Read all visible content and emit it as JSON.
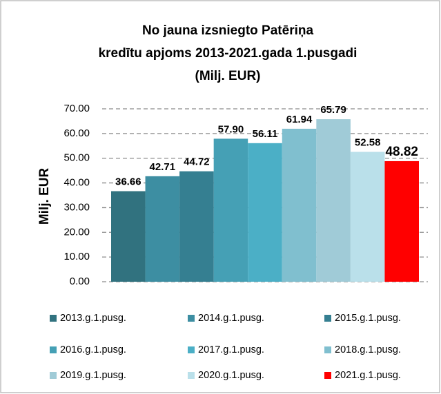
{
  "chart_data": {
    "type": "bar",
    "title": [
      "No jauna izsniegto Patēriņa",
      "kredītu apjoms 2013-2021.gada 1.pusgadi",
      "(Milj. EUR)"
    ],
    "ylabel": "Milj. EUR",
    "ylim": [
      0,
      70
    ],
    "yticks": [
      {
        "value": 0,
        "label": "0.00"
      },
      {
        "value": 10,
        "label": "10.00"
      },
      {
        "value": 20,
        "label": "20.00"
      },
      {
        "value": 30,
        "label": "30.00"
      },
      {
        "value": 40,
        "label": "40.00"
      },
      {
        "value": 50,
        "label": "50.00"
      },
      {
        "value": 60,
        "label": "60.00"
      },
      {
        "value": 70,
        "label": "70.00"
      }
    ],
    "grid": true,
    "series": [
      {
        "name": "2013.g.1.pusg.",
        "color": "#31727f",
        "values": [
          36.66
        ],
        "value_labels": [
          "36.66"
        ]
      },
      {
        "name": "2014.g.1.pusg.",
        "color": "#3d8ea2",
        "values": [
          42.71
        ],
        "value_labels": [
          "42.71"
        ]
      },
      {
        "name": "2015.g.1.pusg.",
        "color": "#357f91",
        "values": [
          44.72
        ],
        "value_labels": [
          "44.72"
        ]
      },
      {
        "name": "2016.g.1.pusg.",
        "color": "#45a0b5",
        "values": [
          57.9
        ],
        "value_labels": [
          "57.90"
        ]
      },
      {
        "name": "2017.g.1.pusg.",
        "color": "#4bafc6",
        "values": [
          56.11
        ],
        "value_labels": [
          "56.11"
        ]
      },
      {
        "name": "2018.g.1.pusg.",
        "color": "#80bfcf",
        "values": [
          61.94
        ],
        "value_labels": [
          "61.94"
        ]
      },
      {
        "name": "2019.g.1.pusg.",
        "color": "#a0cbd7",
        "values": [
          65.79
        ],
        "value_labels": [
          "65.79"
        ]
      },
      {
        "name": "2020.g.1.pusg.",
        "color": "#bae0ea",
        "values": [
          52.58
        ],
        "value_labels": [
          "52.58"
        ]
      },
      {
        "name": "2021.g.1.pusg.",
        "color": "#ff0000",
        "values": [
          48.82
        ],
        "value_labels": [
          "48.82"
        ]
      }
    ]
  }
}
